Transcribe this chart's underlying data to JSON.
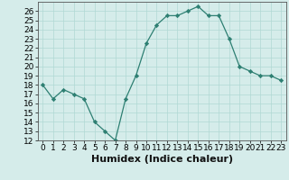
{
  "x": [
    0,
    1,
    2,
    3,
    4,
    5,
    6,
    7,
    8,
    9,
    10,
    11,
    12,
    13,
    14,
    15,
    16,
    17,
    18,
    19,
    20,
    21,
    22,
    23
  ],
  "y": [
    18,
    16.5,
    17.5,
    17,
    16.5,
    14,
    13,
    12,
    16.5,
    19,
    22.5,
    24.5,
    25.5,
    25.5,
    26,
    26.5,
    25.5,
    25.5,
    23,
    20,
    19.5,
    19,
    19,
    18.5
  ],
  "xlabel": "Humidex (Indice chaleur)",
  "ylim": [
    12,
    27
  ],
  "xlim": [
    -0.5,
    23.5
  ],
  "yticks": [
    12,
    13,
    14,
    15,
    16,
    17,
    18,
    19,
    20,
    21,
    22,
    23,
    24,
    25,
    26
  ],
  "xticks": [
    0,
    1,
    2,
    3,
    4,
    5,
    6,
    7,
    8,
    9,
    10,
    11,
    12,
    13,
    14,
    15,
    16,
    17,
    18,
    19,
    20,
    21,
    22,
    23
  ],
  "line_color": "#2d7f72",
  "marker_color": "#2d7f72",
  "bg_color": "#d5ecea",
  "grid_color": "#b0d8d4",
  "tick_fontsize": 6.5,
  "xlabel_fontsize": 8
}
